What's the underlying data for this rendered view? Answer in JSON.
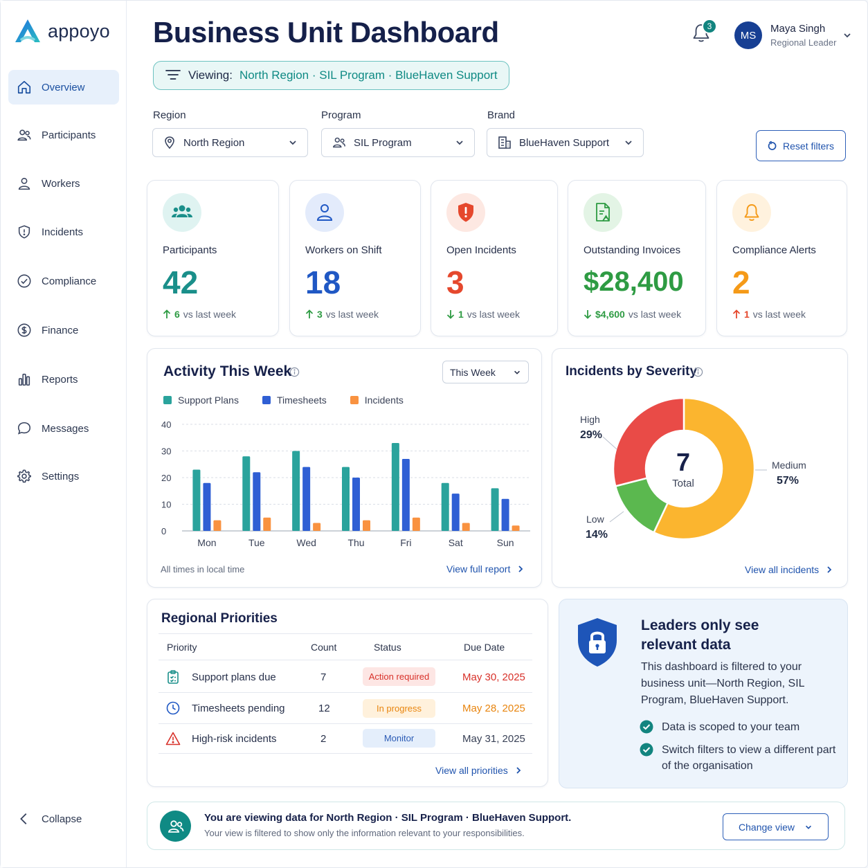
{
  "brand": {
    "name": "appoyo"
  },
  "sidebar": {
    "items": [
      {
        "label": "Overview",
        "icon": "home-icon",
        "active": true
      },
      {
        "label": "Participants",
        "icon": "users-icon"
      },
      {
        "label": "Workers",
        "icon": "user-icon"
      },
      {
        "label": "Incidents",
        "icon": "shield-icon"
      },
      {
        "label": "Compliance",
        "icon": "check-circle-icon"
      },
      {
        "label": "Finance",
        "icon": "dollar-circle-icon"
      },
      {
        "label": "Reports",
        "icon": "bar-chart-icon"
      },
      {
        "label": "Messages",
        "icon": "chat-bubble-icon"
      },
      {
        "label": "Settings",
        "icon": "gear-icon"
      }
    ],
    "collapse_label": "Collapse"
  },
  "header": {
    "title": "Business Unit Dashboard",
    "viewing_label": "Viewing:",
    "viewing_value": "North Region · SIL Program · BlueHaven Support",
    "notifications_count": "3",
    "user": {
      "initials": "MS",
      "name": "Maya Singh",
      "role": "Regional Leader"
    }
  },
  "filters": {
    "region": {
      "label": "Region",
      "value": "North Region"
    },
    "program": {
      "label": "Program",
      "value": "SIL Program"
    },
    "brand": {
      "label": "Brand",
      "value": "BlueHaven Support"
    },
    "reset_label": "Reset filters"
  },
  "kpis": [
    {
      "label": "Participants",
      "value": "42",
      "delta": "6",
      "direction": "up",
      "suffix": "vs last week",
      "color": "#1a8f8a"
    },
    {
      "label": "Workers on Shift",
      "value": "18",
      "delta": "3",
      "direction": "up",
      "suffix": "vs last week",
      "color": "#2058c4"
    },
    {
      "label": "Open Incidents",
      "value": "3",
      "delta": "1",
      "direction": "down",
      "suffix": "vs last week",
      "color": "#e5482d"
    },
    {
      "label": "Outstanding Invoices",
      "value": "$28,400",
      "delta": "$4,600",
      "direction": "down",
      "suffix": "vs last week",
      "color": "#2e9b43"
    },
    {
      "label": "Compliance Alerts",
      "value": "2",
      "delta": "1",
      "direction": "up",
      "suffix": "vs last week",
      "color": "#f59a18"
    }
  ],
  "activity": {
    "title": "Activity This Week",
    "period": "This Week",
    "footnote": "All times in local time",
    "link": "View full report"
  },
  "incidents_severity": {
    "title": "Incidents by Severity",
    "total": "7",
    "total_label": "Total",
    "link": "View all incidents"
  },
  "chart_data": [
    {
      "type": "bar",
      "title": "Activity This Week",
      "categories": [
        "Mon",
        "Tue",
        "Wed",
        "Thu",
        "Fri",
        "Sat",
        "Sun"
      ],
      "series": [
        {
          "name": "Support Plans",
          "color": "#2aa39c",
          "values": [
            23,
            28,
            30,
            24,
            33,
            18,
            16
          ]
        },
        {
          "name": "Timesheets",
          "color": "#2f5fd4",
          "values": [
            18,
            22,
            24,
            20,
            27,
            14,
            12
          ]
        },
        {
          "name": "Incidents",
          "color": "#f99240",
          "values": [
            4,
            5,
            3,
            4,
            5,
            3,
            2
          ]
        }
      ],
      "yticks": [
        0,
        10,
        20,
        30,
        40
      ],
      "ylim": [
        0,
        40
      ],
      "grid": true,
      "legend": "top-left"
    },
    {
      "type": "pie",
      "title": "Incidents by Severity",
      "slices": [
        {
          "name": "Medium",
          "value": 57,
          "label": "57%",
          "color": "#fbb52f"
        },
        {
          "name": "Low",
          "value": 14,
          "label": "14%",
          "color": "#5bb84f"
        },
        {
          "name": "High",
          "value": 29,
          "label": "29%",
          "color": "#e94b47"
        }
      ]
    }
  ],
  "priorities": {
    "title": "Regional Priorities",
    "columns": [
      "Priority",
      "Count",
      "Status",
      "Due Date"
    ],
    "rows": [
      {
        "priority": "Support plans due",
        "icon": "clipboard-icon",
        "count": "7",
        "status": "Action required",
        "due": "May 30, 2025",
        "status_color": "#d8312a",
        "status_bg": "#fde6e4",
        "due_color": "#d8312a"
      },
      {
        "priority": "Timesheets pending",
        "icon": "clock-icon",
        "count": "12",
        "status": "In progress",
        "due": "May 28, 2025",
        "status_color": "#e8850f",
        "status_bg": "#fff1dc",
        "due_color": "#e8850f"
      },
      {
        "priority": "High-risk incidents",
        "icon": "warning-triangle-icon",
        "count": "2",
        "status": "Monitor",
        "due": "May 31, 2025",
        "status_color": "#2b5bb5",
        "status_bg": "#e4eefb",
        "due_color": "#3a4257"
      }
    ],
    "link": "View all priorities"
  },
  "leaders": {
    "title_line1": "Leaders only see",
    "title_line2": "relevant data",
    "body": "This dashboard is filtered to your business unit—North Region, SIL Program, BlueHaven Support.",
    "bullets": [
      "Data is scoped to your team",
      "Switch filters to view a different part of the organisation"
    ]
  },
  "banner": {
    "title": "You are viewing data for North Region · SIL Program · BlueHaven Support.",
    "subtitle": "Your view is filtered to show only the information relevant to your responsibilities.",
    "button": "Change view"
  }
}
